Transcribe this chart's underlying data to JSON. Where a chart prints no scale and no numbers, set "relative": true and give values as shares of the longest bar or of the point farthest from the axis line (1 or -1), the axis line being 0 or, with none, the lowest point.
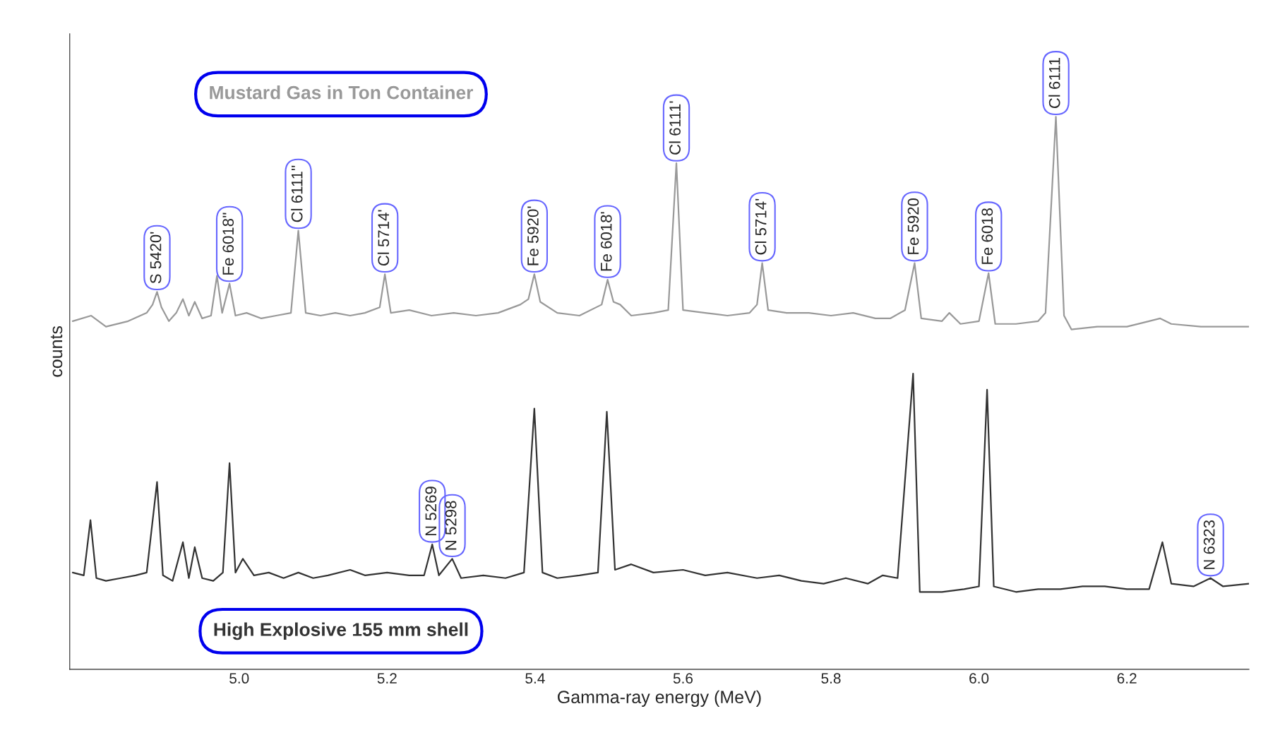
{
  "chart_data": {
    "type": "line",
    "relative": true,
    "xlabel": "Gamma-ray energy (MeV)",
    "ylabel": "counts",
    "xlim": [
      4.771,
      6.365
    ],
    "xticks": [
      {
        "value": 5.0,
        "label": "5.0"
      },
      {
        "value": 5.2,
        "label": "5.2"
      },
      {
        "value": 5.4,
        "label": "5.4"
      },
      {
        "value": 5.6,
        "label": "5.6"
      },
      {
        "value": 5.8,
        "label": "5.8"
      },
      {
        "value": 6.0,
        "label": "6.0"
      },
      {
        "value": 6.2,
        "label": "6.2"
      }
    ],
    "grid": false,
    "legend": false,
    "marker": "none",
    "line_style": "solid",
    "series": [
      {
        "name": "Mustard Gas in Ton Container",
        "color": "#999999",
        "x": [
          4.775,
          4.8,
          4.82,
          4.85,
          4.875,
          4.883,
          4.889,
          4.895,
          4.905,
          4.915,
          4.924,
          4.932,
          4.94,
          4.95,
          4.962,
          4.97,
          4.977,
          4.987,
          4.995,
          5.01,
          5.03,
          5.05,
          5.07,
          5.08,
          5.09,
          5.11,
          5.13,
          5.15,
          5.17,
          5.19,
          5.197,
          5.205,
          5.23,
          5.26,
          5.29,
          5.32,
          5.35,
          5.38,
          5.391,
          5.399,
          5.407,
          5.43,
          5.46,
          5.49,
          5.498,
          5.506,
          5.515,
          5.53,
          5.56,
          5.58,
          5.591,
          5.6,
          5.63,
          5.66,
          5.69,
          5.7,
          5.707,
          5.715,
          5.74,
          5.77,
          5.8,
          5.83,
          5.86,
          5.88,
          5.9,
          5.913,
          5.922,
          5.95,
          5.96,
          5.975,
          6.0,
          6.013,
          6.022,
          6.05,
          6.08,
          6.09,
          6.104,
          6.115,
          6.125,
          6.16,
          6.2,
          6.23,
          6.245,
          6.26,
          6.3,
          6.33,
          6.365
        ],
        "values": [
          0.63,
          0.64,
          0.62,
          0.63,
          0.645,
          0.66,
          0.683,
          0.655,
          0.63,
          0.645,
          0.67,
          0.64,
          0.665,
          0.635,
          0.64,
          0.712,
          0.645,
          0.698,
          0.64,
          0.645,
          0.635,
          0.64,
          0.645,
          0.794,
          0.645,
          0.64,
          0.645,
          0.64,
          0.645,
          0.655,
          0.715,
          0.645,
          0.65,
          0.64,
          0.645,
          0.64,
          0.645,
          0.66,
          0.67,
          0.715,
          0.665,
          0.645,
          0.64,
          0.66,
          0.705,
          0.665,
          0.66,
          0.64,
          0.645,
          0.65,
          0.916,
          0.65,
          0.645,
          0.64,
          0.645,
          0.66,
          0.735,
          0.65,
          0.645,
          0.645,
          0.64,
          0.645,
          0.635,
          0.635,
          0.65,
          0.735,
          0.635,
          0.63,
          0.645,
          0.625,
          0.63,
          0.717,
          0.625,
          0.625,
          0.63,
          0.645,
          1.0,
          0.64,
          0.615,
          0.62,
          0.62,
          0.63,
          0.635,
          0.625,
          0.62,
          0.62,
          0.62
        ]
      },
      {
        "name": "High Explosive 155 mm shell",
        "color": "#333333",
        "x": [
          4.775,
          4.79,
          4.799,
          4.807,
          4.82,
          4.84,
          4.86,
          4.875,
          4.889,
          4.897,
          4.91,
          4.924,
          4.932,
          4.94,
          4.95,
          4.965,
          4.978,
          4.987,
          4.995,
          5.005,
          5.02,
          5.04,
          5.06,
          5.08,
          5.1,
          5.12,
          5.15,
          5.17,
          5.2,
          5.23,
          5.25,
          5.261,
          5.27,
          5.288,
          5.3,
          5.33,
          5.36,
          5.385,
          5.399,
          5.41,
          5.43,
          5.46,
          5.485,
          5.497,
          5.508,
          5.53,
          5.56,
          5.6,
          5.63,
          5.66,
          5.7,
          5.73,
          5.76,
          5.79,
          5.82,
          5.85,
          5.87,
          5.89,
          5.911,
          5.92,
          5.95,
          5.98,
          6.0,
          6.011,
          6.02,
          6.05,
          6.08,
          6.11,
          6.14,
          6.17,
          6.2,
          6.23,
          6.248,
          6.26,
          6.29,
          6.313,
          6.33,
          6.365
        ],
        "values": [
          0.175,
          0.17,
          0.27,
          0.165,
          0.16,
          0.165,
          0.17,
          0.175,
          0.339,
          0.17,
          0.16,
          0.23,
          0.165,
          0.221,
          0.165,
          0.16,
          0.175,
          0.373,
          0.175,
          0.2,
          0.17,
          0.175,
          0.165,
          0.175,
          0.165,
          0.17,
          0.18,
          0.17,
          0.175,
          0.17,
          0.17,
          0.226,
          0.17,
          0.2,
          0.165,
          0.17,
          0.165,
          0.175,
          0.472,
          0.175,
          0.165,
          0.17,
          0.175,
          0.466,
          0.18,
          0.19,
          0.175,
          0.18,
          0.17,
          0.175,
          0.165,
          0.17,
          0.16,
          0.155,
          0.165,
          0.155,
          0.17,
          0.165,
          0.535,
          0.14,
          0.14,
          0.145,
          0.15,
          0.506,
          0.15,
          0.14,
          0.145,
          0.145,
          0.15,
          0.15,
          0.145,
          0.145,
          0.23,
          0.155,
          0.15,
          0.165,
          0.15,
          0.155
        ]
      }
    ],
    "annotations": [
      {
        "text": "S 5420'",
        "x": 4.889,
        "y": 0.683
      },
      {
        "text": "Fe 6018''",
        "x": 4.987,
        "y": 0.698
      },
      {
        "text": "Cl 6111''",
        "x": 5.08,
        "y": 0.794
      },
      {
        "text": "Cl 5714'",
        "x": 5.197,
        "y": 0.715
      },
      {
        "text": "Fe 5920'",
        "x": 5.399,
        "y": 0.715
      },
      {
        "text": "Fe 6018'",
        "x": 5.498,
        "y": 0.705
      },
      {
        "text": "Cl 6111'",
        "x": 5.591,
        "y": 0.916
      },
      {
        "text": "Cl 5714'",
        "x": 5.707,
        "y": 0.735
      },
      {
        "text": "Fe 5920",
        "x": 5.913,
        "y": 0.735
      },
      {
        "text": "Fe 6018",
        "x": 6.013,
        "y": 0.717
      },
      {
        "text": "Cl 6111",
        "x": 6.104,
        "y": 1.0
      },
      {
        "text": "N 5269",
        "x": 5.261,
        "y": 0.226
      },
      {
        "text": "N 5298",
        "x": 5.288,
        "y": 0.2
      },
      {
        "text": "N 6323",
        "x": 6.313,
        "y": 0.165
      }
    ]
  }
}
